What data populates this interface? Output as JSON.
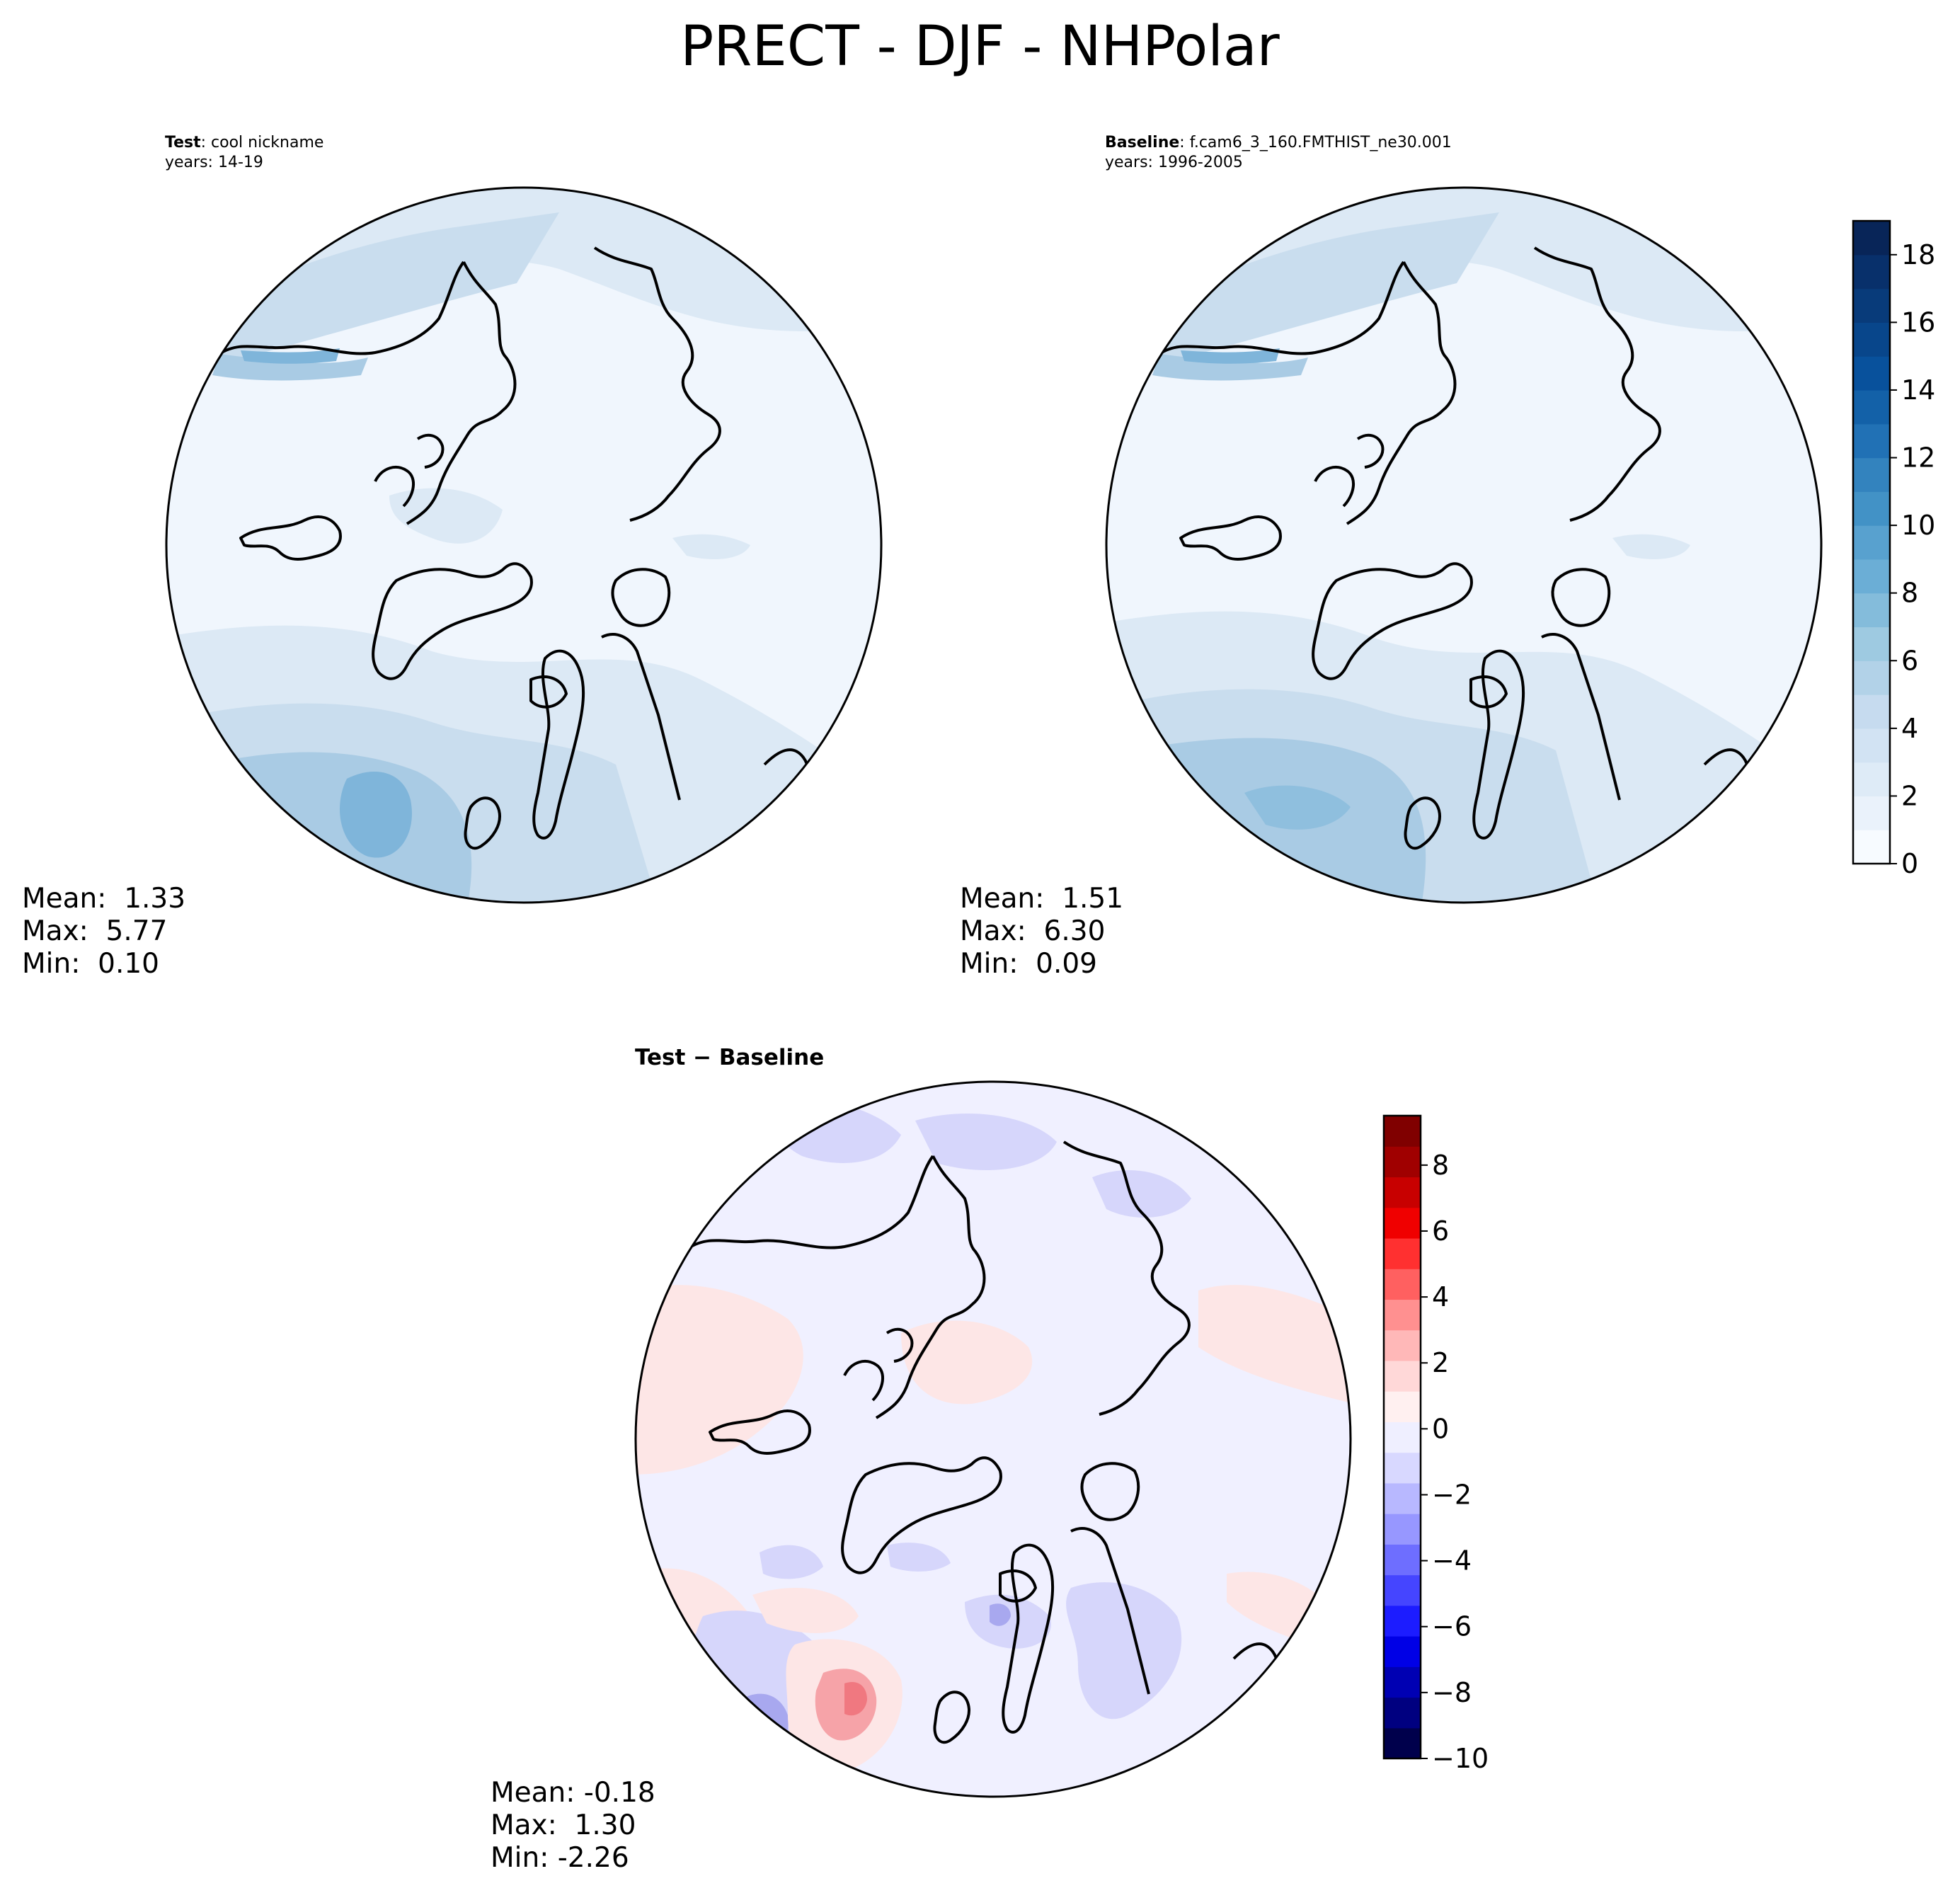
{
  "title": "PRECT - DJF - NHPolar",
  "panels": {
    "test": {
      "label_bold": "Test",
      "label_rest": ": cool nickname",
      "years": "years: 14-19",
      "stats": {
        "mean": "Mean:  1.33",
        "max": "Max:  5.77",
        "min": "Min:  0.10"
      }
    },
    "baseline": {
      "label_bold": "Baseline",
      "label_rest": ": f.cam6_3_160.FMTHIST_ne30.001",
      "years": "years: 1996-2005",
      "stats": {
        "mean": "Mean:  1.51",
        "max": "Max:  6.30",
        "min": "Min:  0.09"
      }
    },
    "difference": {
      "label_bold": "Test − Baseline",
      "stats": {
        "mean": "Mean: -0.18",
        "max": "Max:  1.30",
        "min": "Min: -2.26"
      }
    }
  },
  "colorbars": {
    "main": {
      "colormap": "Blues",
      "range": [
        0,
        19
      ],
      "ticks": [
        "0",
        "2",
        "4",
        "6",
        "8",
        "10",
        "12",
        "14",
        "16",
        "18"
      ],
      "levels": [
        "#f7fbff",
        "#eaf2fb",
        "#deebf7",
        "#d2e3f3",
        "#c6dbef",
        "#b2d2e8",
        "#9ecae1",
        "#84bcdb",
        "#6baed6",
        "#58a1cf",
        "#4292c6",
        "#3383be",
        "#2171b5",
        "#1361a8",
        "#08519c",
        "#08468b",
        "#083b7a",
        "#08306b",
        "#082558"
      ]
    },
    "diff": {
      "colormap": "seismic",
      "range": [
        -10,
        9.5
      ],
      "ticks": [
        "−10",
        "−8",
        "−6",
        "−4",
        "−2",
        "0",
        "2",
        "4",
        "6",
        "8"
      ],
      "levels": [
        "#00004c",
        "#000080",
        "#0000b3",
        "#0000e6",
        "#1c1cff",
        "#4545ff",
        "#6e6eff",
        "#9797ff",
        "#b8b8ff",
        "#d8d8ff",
        "#efefff",
        "#fff0f0",
        "#ffd8d8",
        "#ffb8b8",
        "#ff9090",
        "#ff6060",
        "#ff3030",
        "#f00000",
        "#c80000",
        "#a00000",
        "#800000"
      ]
    }
  },
  "map_colors": {
    "ocean_low": "#f0f6fd",
    "light": "#dce9f5",
    "mid": "#c9ddee",
    "deep": "#a9cbe4",
    "deeper": "#7fb5da",
    "diff_base": "#f0f0ff",
    "diff_pos": "#fde6e6",
    "diff_neg": "#d6d6fb",
    "diff_strong_pos": "#f6a3a8",
    "diff_strong_neg": "#a8a8ef"
  }
}
